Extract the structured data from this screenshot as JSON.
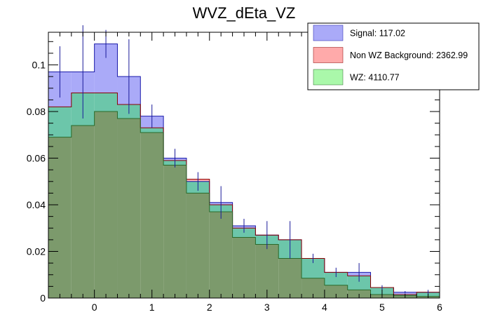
{
  "chart_data": {
    "type": "histogram",
    "title": "WVZ_dEta_VZ",
    "xlabel": "",
    "ylabel": "",
    "xlim": [
      -0.8,
      6
    ],
    "ylim": [
      0,
      0.114
    ],
    "x_ticks": [
      "0",
      "1",
      "2",
      "3",
      "4",
      "5",
      "6"
    ],
    "y_ticks": [
      "0",
      "0.02",
      "0.04",
      "0.06",
      "0.08",
      "0.1"
    ],
    "bin_edges": [
      -0.8,
      -0.4,
      0.0,
      0.4,
      0.8,
      1.2,
      1.6,
      2.0,
      2.4,
      2.8,
      3.2,
      3.6,
      4.0,
      4.4,
      4.8,
      5.2,
      5.6,
      6.0
    ],
    "series": [
      {
        "name": "Signal: 117.02",
        "color": "#aaaaf8",
        "edge": "#1a1aaa",
        "values": [
          0.097,
          0.097,
          0.109,
          0.095,
          0.078,
          0.06,
          0.05,
          0.041,
          0.031,
          0.027,
          0.025,
          0.017,
          0.011,
          0.011,
          0.0045,
          0.0025,
          0.0025
        ],
        "errors": [
          0.011,
          0.02,
          0.006,
          0.016,
          0.005,
          0.004,
          0.004,
          0.007,
          0.003,
          0.006,
          0.008,
          0.002,
          0.002,
          0.004,
          0.001,
          0.0005,
          0.001
        ]
      },
      {
        "name": "Non WZ Background: 2362.99",
        "color": "#ffaaaa",
        "edge": "#8a0000",
        "values": [
          0.082,
          0.088,
          0.088,
          0.083,
          0.073,
          0.059,
          0.051,
          0.04,
          0.03,
          0.027,
          0.025,
          0.017,
          0.011,
          0.0095,
          0.0045,
          0.0015,
          0.0025
        ]
      },
      {
        "name": "WZ: 4110.77",
        "color": "#aaf8aa",
        "edge": "#2a6a2a",
        "values": [
          0.069,
          0.074,
          0.08,
          0.077,
          0.071,
          0.057,
          0.045,
          0.037,
          0.026,
          0.023,
          0.017,
          0.0085,
          0.0055,
          0.0035,
          0.0015,
          0.001,
          0.0007
        ]
      }
    ],
    "legend_position": "top-right",
    "grid": false,
    "overlap_color": "#7c9a6c",
    "signal_nonwz_overlap_color": "#6cc6aa",
    "nonwz_only_color": "#f0a8a8",
    "signal_wz_overlap_color": "#aa99aa"
  },
  "legend": {
    "entries": [
      "Signal: 117.02",
      "Non WZ Background: 2362.99",
      "WZ: 4110.77"
    ]
  }
}
